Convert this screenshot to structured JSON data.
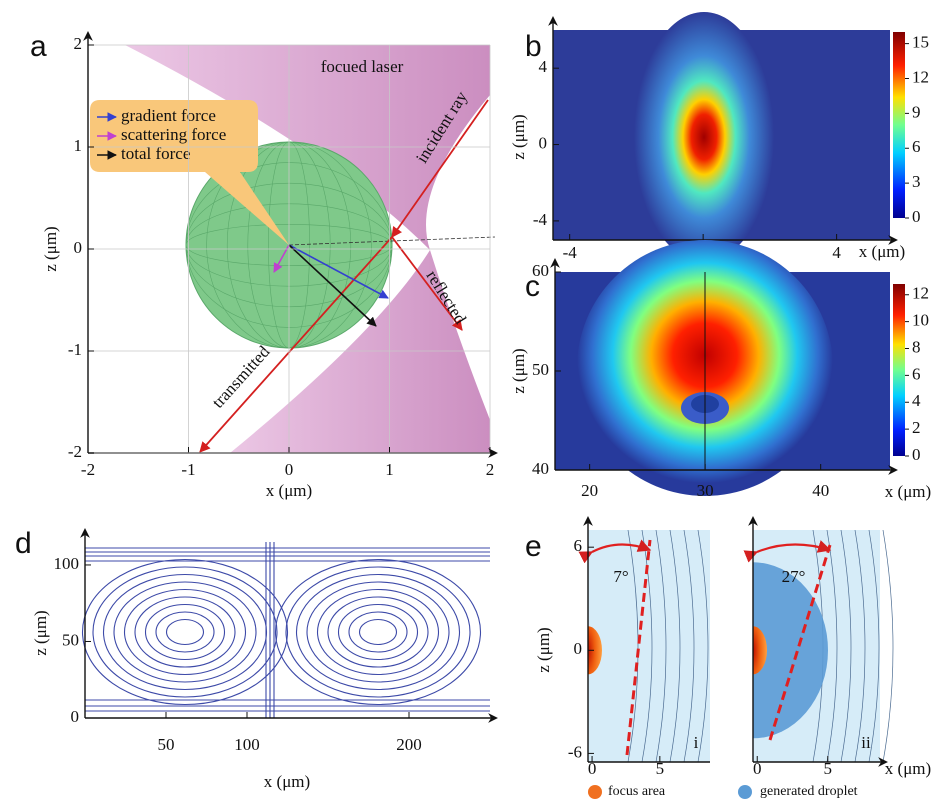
{
  "chart_data": [
    {
      "type": "force-diagram",
      "panel_label": "a",
      "xlabel": "x (μm)",
      "ylabel": "z (μm)",
      "xlim": [
        -2,
        2
      ],
      "ylim": [
        -2,
        2
      ],
      "xticks": [
        -2,
        -1,
        0,
        1,
        2
      ],
      "yticks": [
        -2,
        -1,
        0,
        1,
        2
      ],
      "grid": true,
      "annotations": [
        "focued laser",
        "incident ray",
        "reflected",
        "transmitted"
      ],
      "series": [
        {
          "name": "gradient force",
          "color": "#3340d0"
        },
        {
          "name": "scattering force",
          "color": "#c040d0"
        },
        {
          "name": "total force",
          "color": "#111111"
        }
      ]
    },
    {
      "type": "heatmap",
      "panel_label": "b",
      "xlabel": "x (μm)",
      "ylabel": "z (μm)",
      "xlim": [
        -4.5,
        5.6
      ],
      "ylim": [
        -5,
        6
      ],
      "xticks": [
        -4,
        0,
        4
      ],
      "yticks": [
        -4,
        0,
        4
      ],
      "colorbar": {
        "lim": [
          0,
          16
        ],
        "ticks": [
          0,
          3,
          6,
          9,
          12,
          15
        ]
      }
    },
    {
      "type": "heatmap",
      "panel_label": "c",
      "xlabel": "x (μm)",
      "ylabel": "z (μm)",
      "xlim": [
        17,
        46
      ],
      "ylim": [
        40,
        60
      ],
      "xticks": [
        20,
        30,
        40
      ],
      "yticks": [
        40,
        50,
        60
      ],
      "colorbar": {
        "lim": [
          0,
          12.8
        ],
        "ticks": [
          0,
          2,
          4,
          6,
          8,
          10,
          12
        ]
      }
    },
    {
      "type": "streamline",
      "panel_label": "d",
      "xlabel": "x (μm)",
      "ylabel": "z (μm)",
      "xlim": [
        0,
        250
      ],
      "ylim": [
        0,
        115
      ],
      "xticks": [
        50,
        100,
        200
      ],
      "yticks": [
        0,
        50,
        100
      ]
    },
    {
      "type": "droplet",
      "panel_label": "e",
      "xlabel": "x (μm)",
      "ylabel": "z (μm)",
      "xlim": [
        -0.3,
        8.7
      ],
      "ylim": [
        -6.5,
        7
      ],
      "xticks": [
        0,
        5
      ],
      "yticks": [
        -6,
        0,
        6
      ],
      "panels": [
        {
          "label": "i",
          "angle_label": "7°"
        },
        {
          "label": "ii",
          "angle_label": "27°"
        }
      ],
      "series": [
        {
          "name": "focus area",
          "color": "#f07020"
        },
        {
          "name": "generated droplet",
          "color": "#5b9bd5"
        }
      ]
    }
  ]
}
